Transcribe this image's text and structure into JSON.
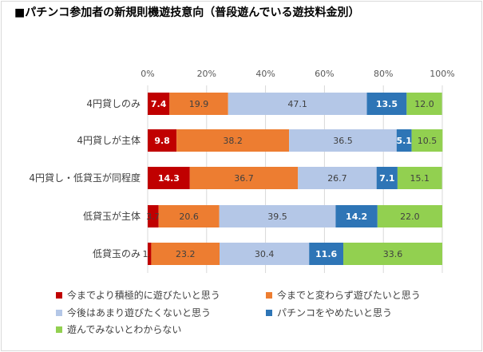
{
  "chart_data": {
    "type": "bar",
    "orientation": "horizontal",
    "stacked": "percent",
    "title": "■パチンコ参加者の新規則機遊技意向（普段遊んでいる遊技料金別）",
    "categories": [
      "4円貸しのみ",
      "4円貸しが主体",
      "4円貸し・低貸玉が同程度",
      "低貸玉が主体",
      "低貸玉のみ"
    ],
    "xlim": [
      0,
      100
    ],
    "xticks": [
      "0%",
      "20%",
      "40%",
      "60%",
      "80%",
      "100%"
    ],
    "grid": true,
    "legend_position": "bottom",
    "series": [
      {
        "name": "今までより積極的に遊びたいと思う",
        "color": "#C00000",
        "values": [
          7.4,
          9.8,
          14.3,
          3.7,
          1.2
        ]
      },
      {
        "name": "今までと変わらず遊びたいと思う",
        "color": "#ED7D31",
        "values": [
          19.9,
          38.2,
          36.7,
          20.6,
          23.2
        ]
      },
      {
        "name": "今後はあまり遊びたくないと思う",
        "color": "#B4C7E7",
        "values": [
          47.1,
          36.5,
          26.7,
          39.5,
          30.4
        ]
      },
      {
        "name": "パチンコをやめたいと思う",
        "color": "#2E75B6",
        "values": [
          13.5,
          5.1,
          7.1,
          14.2,
          11.6
        ]
      },
      {
        "name": "遊んでみないとわからない",
        "color": "#92D050",
        "values": [
          12.0,
          10.5,
          15.1,
          22.0,
          33.6
        ]
      }
    ]
  }
}
